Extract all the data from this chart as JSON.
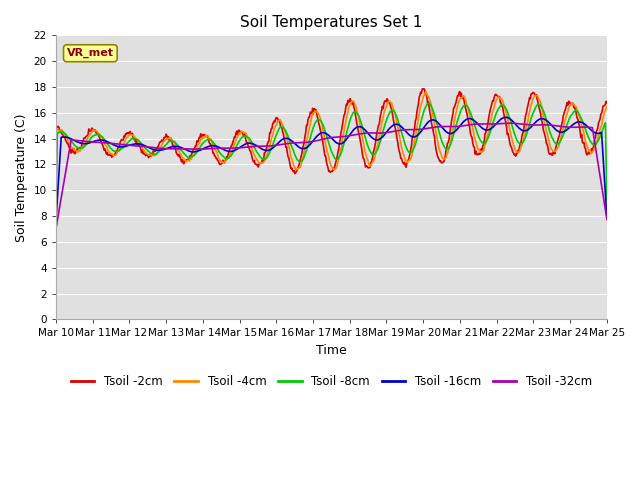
{
  "title": "Soil Temperatures Set 1",
  "xlabel": "Time",
  "ylabel": "Soil Temperature (C)",
  "ylim": [
    0,
    22
  ],
  "yticks": [
    0,
    2,
    4,
    6,
    8,
    10,
    12,
    14,
    16,
    18,
    20,
    22
  ],
  "x_labels": [
    "Mar 10",
    "Mar 11",
    "Mar 12",
    "Mar 13",
    "Mar 14",
    "Mar 15",
    "Mar 16",
    "Mar 17",
    "Mar 18",
    "Mar 19",
    "Mar 20",
    "Mar 21",
    "Mar 22",
    "Mar 23",
    "Mar 24",
    "Mar 25"
  ],
  "series_colors": [
    "#dd0000",
    "#ff8800",
    "#00cc00",
    "#0000cc",
    "#aa00aa"
  ],
  "series_labels": [
    "Tsoil -2cm",
    "Tsoil -4cm",
    "Tsoil -8cm",
    "Tsoil -16cm",
    "Tsoil -32cm"
  ],
  "annotation_text": "VR_met",
  "annotation_box_color": "#ffff99",
  "annotation_text_color": "#880000",
  "annotation_edge_color": "#888800",
  "fig_bg_color": "#ffffff",
  "plot_bg_color": "#e0e0e0",
  "grid_color": "#ffffff",
  "linewidth": 1.2,
  "title_fontsize": 11,
  "axis_label_fontsize": 9,
  "tick_fontsize": 7.5,
  "legend_fontsize": 8.5,
  "num_points": 720
}
